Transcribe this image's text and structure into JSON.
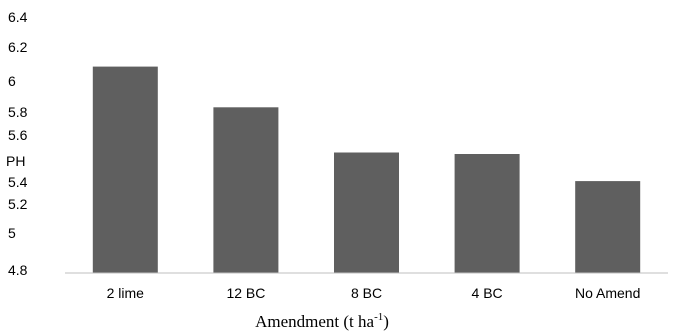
{
  "chart_data": {
    "type": "bar",
    "categories": [
      "2 lime",
      "12 BC",
      "8 BC",
      "4 BC",
      "No Amend"
    ],
    "values": [
      6.17,
      5.9,
      5.6,
      5.59,
      5.41
    ],
    "ytick_labels": [
      "6.4",
      "6.2",
      "6",
      "5.8",
      "5.6",
      "5.4",
      "5.2",
      "5",
      "4.8"
    ],
    "ylim": [
      4.8,
      6.4
    ],
    "ylabel": "PH",
    "xlabel": {
      "text": "Amendment (t ha",
      "sup": "-1",
      "tail": ")"
    },
    "bar_color": "#5f5f5f",
    "grid": false,
    "legend": "none"
  }
}
